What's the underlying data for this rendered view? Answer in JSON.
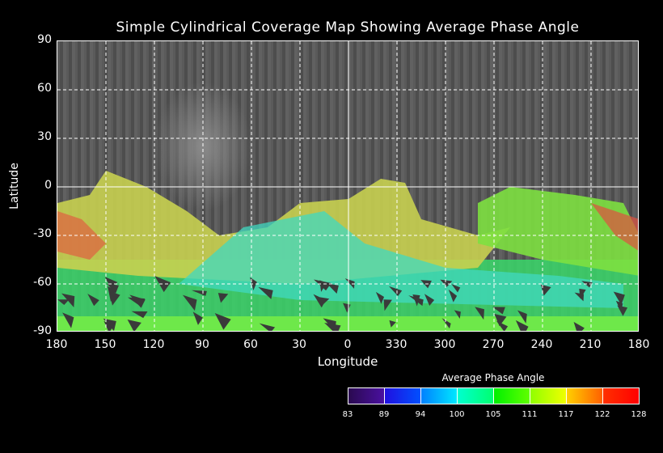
{
  "title": "Simple Cylindrical Coverage Map Showing Average Phase Angle",
  "xlabel": "Longitude",
  "ylabel": "Latitude",
  "x_ticks": [
    "180",
    "150",
    "120",
    "90",
    "60",
    "30",
    "0",
    "330",
    "300",
    "270",
    "240",
    "210",
    "180"
  ],
  "y_ticks": [
    "90",
    "60",
    "30",
    "0",
    "-30",
    "-60",
    "-90"
  ],
  "colorbar": {
    "title": "Average Phase Angle",
    "ticks": [
      "83",
      "89",
      "94",
      "100",
      "105",
      "111",
      "117",
      "122",
      "128"
    ],
    "segments": [
      [
        "#2a0a50",
        "#4a10a0"
      ],
      [
        "#2010e0",
        "#0050ff"
      ],
      [
        "#0080ff",
        "#00e8ff"
      ],
      [
        "#00ffd0",
        "#00ff70"
      ],
      [
        "#00f000",
        "#60ff00"
      ],
      [
        "#90ff00",
        "#f0ff00"
      ],
      [
        "#ffd000",
        "#ff6000"
      ],
      [
        "#ff3000",
        "#ff0000"
      ]
    ]
  }
}
